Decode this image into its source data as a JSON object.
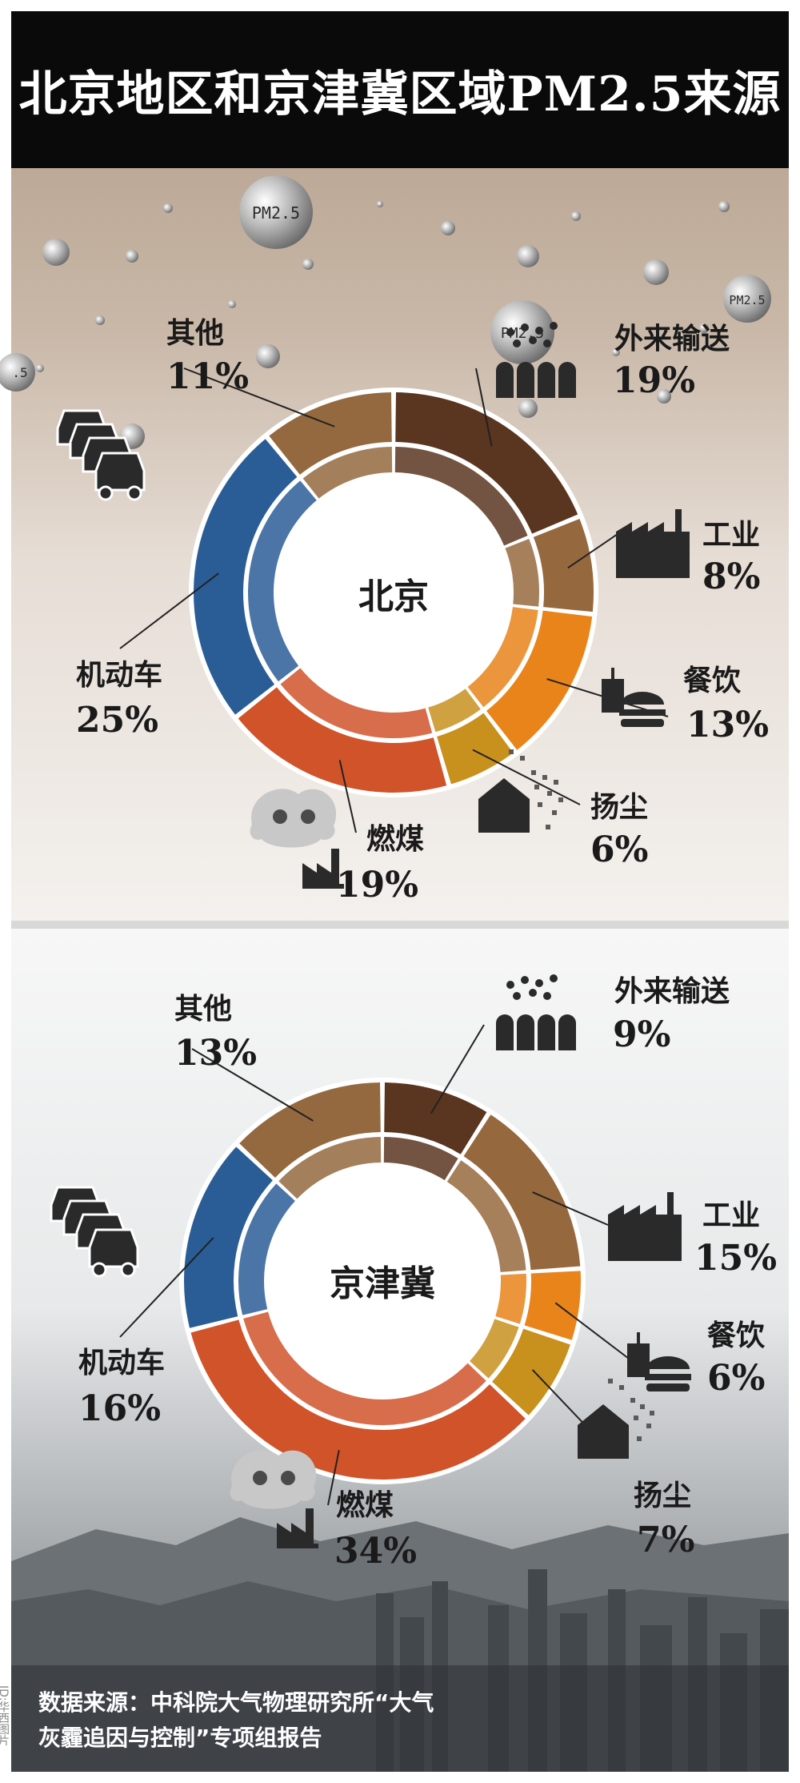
{
  "title": "北京地区和京津冀区域PM2.5来源",
  "bubble_labels": [
    "PM2.5",
    "PM2.5",
    "PM2.5",
    ".5"
  ],
  "icon_names": [
    "arrow-people-icon",
    "factory-icon",
    "food-icon",
    "dust-house-icon",
    "coal-factory-icon",
    "cars-icon"
  ],
  "colors": {
    "transport": "#5a3520",
    "industry": "#96683e",
    "catering": "#e8841a",
    "dust": "#c8911e",
    "coal": "#d0532a",
    "vehicle": "#2a5d96",
    "other": "#94693f"
  },
  "chart_data": [
    {
      "type": "pie",
      "center_label": "北京",
      "categories": [
        "外来输送",
        "工业",
        "餐饮",
        "扬尘",
        "燃煤",
        "机动车",
        "其他"
      ],
      "values": [
        19,
        8,
        13,
        6,
        19,
        25,
        11
      ],
      "value_labels": [
        "19%",
        "8%",
        "13%",
        "6%",
        "19%",
        "25%",
        "11%"
      ]
    },
    {
      "type": "pie",
      "center_label": "京津冀",
      "categories": [
        "外来输送",
        "工业",
        "餐饮",
        "扬尘",
        "燃煤",
        "机动车",
        "其他"
      ],
      "values": [
        9,
        15,
        6,
        7,
        34,
        16,
        13
      ],
      "value_labels": [
        "9%",
        "15%",
        "6%",
        "7%",
        "34%",
        "16%",
        "13%"
      ]
    }
  ],
  "source_line1": "数据来源：中科院大气物理研究所“大气",
  "source_line2": "灰霾追因与控制”专项组报告",
  "credit": "ID:华西图片"
}
